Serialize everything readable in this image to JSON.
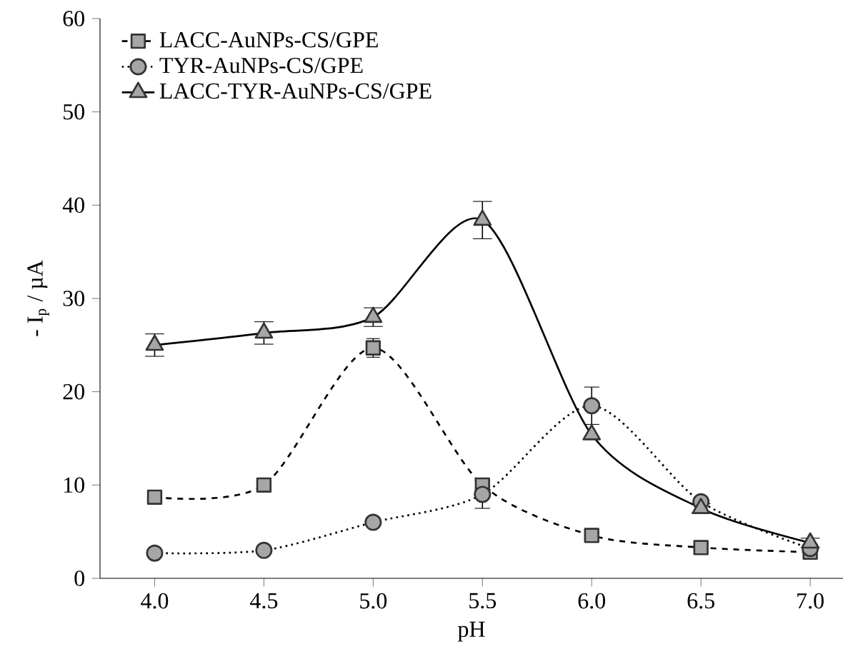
{
  "chart_data": {
    "type": "line",
    "xlabel": "pH",
    "ylabel": "- I$_{p}$ / µA",
    "x": [
      4.0,
      4.5,
      5.0,
      5.5,
      6.0,
      6.5,
      7.0
    ],
    "series": [
      {
        "name": "LACC-AuNPs-CS/GPE",
        "color": "#000000",
        "marker": "square",
        "line_style": "dashed",
        "values": [
          8.7,
          10.0,
          24.7,
          10.0,
          4.6,
          3.3,
          2.8
        ],
        "errors": [
          null,
          null,
          1.0,
          null,
          null,
          null,
          null
        ]
      },
      {
        "name": "TYR-AuNPs-CS/GPE",
        "color": "#000000",
        "marker": "circle",
        "line_style": "dotted",
        "values": [
          2.7,
          3.0,
          6.0,
          9.0,
          18.5,
          8.2,
          3.2
        ],
        "errors": [
          null,
          null,
          null,
          1.5,
          2.0,
          null,
          null
        ]
      },
      {
        "name": "LACC-TYR-AuNPs-CS/GPE",
        "color": "#000000",
        "marker": "triangle",
        "line_style": "solid",
        "values": [
          25.0,
          26.3,
          28.0,
          38.4,
          15.4,
          7.5,
          3.8
        ],
        "errors": [
          1.2,
          1.2,
          1.0,
          2.0,
          null,
          0.5,
          0.5
        ]
      }
    ],
    "xlim": [
      3.75,
      7.15
    ],
    "ylim": [
      0,
      60
    ],
    "xticks": [
      {
        "value": 4.0,
        "label": "4.0"
      },
      {
        "value": 4.5,
        "label": "4.5"
      },
      {
        "value": 5.0,
        "label": "5.0"
      },
      {
        "value": 5.5,
        "label": "5.5"
      },
      {
        "value": 6.0,
        "label": "6.0"
      },
      {
        "value": 6.5,
        "label": "6.5"
      },
      {
        "value": 7.0,
        "label": "7.0"
      }
    ],
    "yticks": [
      0,
      10,
      20,
      30,
      40,
      50,
      60
    ],
    "legend": "top left",
    "grid": false
  }
}
